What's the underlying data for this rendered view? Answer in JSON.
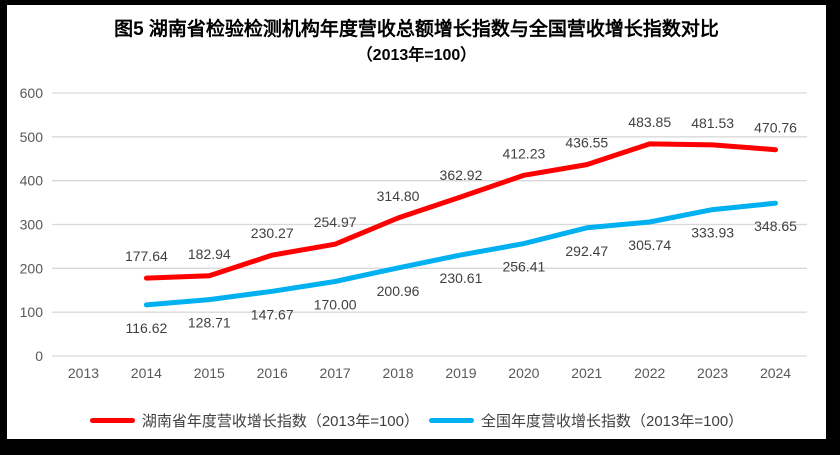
{
  "chart_data": {
    "type": "line",
    "title": "图5 湖南省检验检测机构年度营收总额增长指数与全国营收增长指数对比",
    "subtitle": "（2013年=100）",
    "categories": [
      "2013",
      "2014",
      "2015",
      "2016",
      "2017",
      "2018",
      "2019",
      "2020",
      "2021",
      "2022",
      "2023",
      "2024"
    ],
    "series": [
      {
        "name": "湖南省年度营收增长指数（2013年=100）",
        "color": "#ff0000",
        "values": [
          null,
          177.64,
          182.94,
          230.27,
          254.97,
          314.8,
          362.92,
          412.23,
          436.55,
          483.85,
          481.53,
          470.76
        ]
      },
      {
        "name": "全国年度营收增长指数（2013年=100）",
        "color": "#00b0f0",
        "values": [
          null,
          116.62,
          128.71,
          147.67,
          170.0,
          200.96,
          230.61,
          256.41,
          292.47,
          305.74,
          333.93,
          348.65
        ]
      }
    ],
    "ylim": [
      0,
      600
    ],
    "ytick_step": 100,
    "yticks": [
      "0",
      "100",
      "200",
      "300",
      "400",
      "500",
      "600"
    ],
    "grid": true,
    "legend_position": "bottom",
    "data_labels": true,
    "gridline_color": "#d9d9d9",
    "axis_label_color": "#595959",
    "data_label_color": "#404040",
    "background_color": "#ffffff",
    "frame_color": "#000000"
  }
}
